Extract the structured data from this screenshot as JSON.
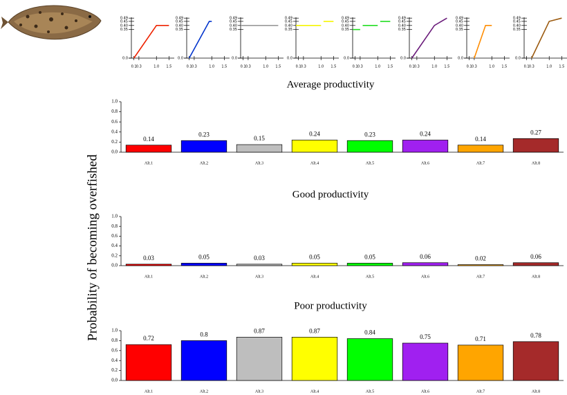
{
  "shared_ylabel": "Probability of becoming overfished",
  "chart_data": [
    {
      "type": "line",
      "color": "#ee2200",
      "x": [
        0.1,
        1.0,
        1.5
      ],
      "values": [
        0,
        0.4,
        0.4
      ],
      "xlim": [
        0,
        1.6
      ],
      "ylim": [
        0,
        0.5
      ],
      "xticks": [
        0.1,
        0.3,
        {
          "value": 1,
          "label": "1.0"
        },
        1.5
      ],
      "yticks": [
        {
          "value": 0,
          "label": "0.0"
        },
        0.35,
        {
          "value": 0.4,
          "label": "0.40"
        },
        0.45,
        0.49
      ]
    },
    {
      "type": "line",
      "color": "#0033cc",
      "x": [
        0.1,
        0.9,
        1.0
      ],
      "values": [
        0,
        0.45,
        0.45
      ],
      "xlim": [
        0,
        1.6
      ],
      "ylim": [
        0,
        0.5
      ],
      "xticks": [
        0.1,
        0.3,
        {
          "value": 1,
          "label": "1.0"
        },
        1.5
      ],
      "yticks": [
        {
          "value": 0,
          "label": "0.0"
        },
        0.35,
        {
          "value": 0.4,
          "label": "0.40"
        },
        0.45,
        0.49
      ]
    },
    {
      "type": "line",
      "color": "#999999",
      "x": [
        0,
        1.5
      ],
      "values": [
        0.4,
        0.4
      ],
      "xlim": [
        0,
        1.6
      ],
      "ylim": [
        0,
        0.5
      ],
      "xticks": [
        0.1,
        0.3,
        {
          "value": 1,
          "label": "1.0"
        },
        1.5
      ],
      "yticks": [
        {
          "value": 0,
          "label": "0.0"
        },
        0.35,
        {
          "value": 0.4,
          "label": "0.40"
        },
        0.45,
        0.49
      ]
    },
    {
      "type": "line",
      "color": "#f5f500",
      "x": [
        0,
        1.0,
        1.05,
        1.1,
        1.5
      ],
      "values": [
        0.4,
        0.4,
        null,
        0.45,
        0.45
      ],
      "xlim": [
        0,
        1.6
      ],
      "ylim": [
        0,
        0.5
      ],
      "xticks": [
        0.1,
        0.3,
        {
          "value": 1,
          "label": "1.0"
        },
        1.5
      ],
      "yticks": [
        {
          "value": 0,
          "label": "0.0"
        },
        0.35,
        {
          "value": 0.4,
          "label": "0.40"
        },
        0.45,
        0.49
      ]
    },
    {
      "type": "line",
      "color": "#22dd22",
      "x": [
        0,
        0.3,
        0.35,
        0.4,
        1.0,
        1.05,
        1.1,
        1.5
      ],
      "values": [
        0.35,
        0.35,
        null,
        0.4,
        0.4,
        null,
        0.45,
        0.45
      ],
      "xlim": [
        0,
        1.6
      ],
      "ylim": [
        0,
        0.5
      ],
      "xticks": [
        0.1,
        0.3,
        {
          "value": 1,
          "label": "1.0"
        },
        1.5
      ],
      "yticks": [
        {
          "value": 0,
          "label": "0.0"
        },
        0.35,
        {
          "value": 0.4,
          "label": "0.40"
        },
        0.45,
        0.49
      ]
    },
    {
      "type": "line",
      "color": "#6a1b7a",
      "x": [
        0.1,
        1.0,
        1.5
      ],
      "values": [
        0,
        0.4,
        0.49
      ],
      "xlim": [
        0,
        1.6
      ],
      "ylim": [
        0,
        0.5
      ],
      "xticks": [
        0.1,
        0.3,
        {
          "value": 1,
          "label": "1.0"
        },
        1.5
      ],
      "yticks": [
        {
          "value": 0,
          "label": "0.0"
        },
        0.35,
        {
          "value": 0.4,
          "label": "0.40"
        },
        0.45,
        0.49
      ]
    },
    {
      "type": "line",
      "color": "#ff8c00",
      "x": [
        0.3,
        0.75,
        1.0
      ],
      "values": [
        0,
        0.4,
        0.4
      ],
      "xlim": [
        0,
        1.6
      ],
      "ylim": [
        0,
        0.5
      ],
      "xticks": [
        0.1,
        0.3,
        {
          "value": 1,
          "label": "1.0"
        },
        1.5
      ],
      "yticks": [
        {
          "value": 0,
          "label": "0.0"
        },
        0.35,
        {
          "value": 0.4,
          "label": "0.40"
        },
        0.45,
        0.49
      ]
    },
    {
      "type": "line",
      "color": "#9b5a0f",
      "x": [
        0.3,
        1.0,
        1.5
      ],
      "values": [
        0,
        0.45,
        0.49
      ],
      "xlim": [
        0,
        1.6
      ],
      "ylim": [
        0,
        0.5
      ],
      "xticks": [
        0.1,
        0.3,
        {
          "value": 1,
          "label": "1.0"
        },
        1.5
      ],
      "yticks": [
        {
          "value": 0,
          "label": "0.0"
        },
        0.35,
        {
          "value": 0.4,
          "label": "0.40"
        },
        0.45,
        0.49
      ]
    },
    {
      "type": "bar",
      "title": "Average productivity",
      "categories": [
        "Alt.1",
        "Alt.2",
        "Alt.3",
        "Alt.4",
        "Alt.5",
        "Alt.6",
        "Alt.7",
        "Alt.8"
      ],
      "values": [
        0.14,
        0.23,
        0.15,
        0.24,
        0.23,
        0.24,
        0.14,
        0.27
      ],
      "colors": [
        "#ff0000",
        "#0000ff",
        "#bebebe",
        "#ffff00",
        "#00ff00",
        "#a020f0",
        "#ffa500",
        "#a52a2a"
      ],
      "ylim": [
        0,
        1
      ],
      "yticks": [
        {
          "value": 0,
          "label": "0.0"
        },
        0.2,
        0.4,
        0.6,
        0.8,
        {
          "value": 1,
          "label": "1.0"
        }
      ]
    },
    {
      "type": "bar",
      "title": "Good productivity",
      "categories": [
        "Alt.1",
        "Alt.2",
        "Alt.3",
        "Alt.4",
        "Alt.5",
        "Alt.6",
        "Alt.7",
        "Alt.8"
      ],
      "values": [
        0.03,
        0.05,
        0.03,
        0.05,
        0.05,
        0.06,
        0.02,
        0.06
      ],
      "colors": [
        "#ff0000",
        "#0000ff",
        "#bebebe",
        "#ffff00",
        "#00ff00",
        "#a020f0",
        "#ffa500",
        "#a52a2a"
      ],
      "ylim": [
        0,
        1
      ],
      "yticks": [
        {
          "value": 0,
          "label": "0.0"
        },
        0.2,
        0.4,
        0.6,
        0.8,
        {
          "value": 1,
          "label": "1.0"
        }
      ]
    },
    {
      "type": "bar",
      "title": "Poor productivity",
      "categories": [
        "Alt.1",
        "Alt.2",
        "Alt.3",
        "Alt.4",
        "Alt.5",
        "Alt.6",
        "Alt.7",
        "Alt.8"
      ],
      "values": [
        0.72,
        0.8,
        0.87,
        0.87,
        0.84,
        0.75,
        0.71,
        0.78
      ],
      "colors": [
        "#ff0000",
        "#0000ff",
        "#bebebe",
        "#ffff00",
        "#00ff00",
        "#a020f0",
        "#ffa500",
        "#a52a2a"
      ],
      "ylim": [
        0,
        1
      ],
      "yticks": [
        {
          "value": 0,
          "label": "0.0"
        },
        0.2,
        0.4,
        0.6,
        0.8,
        {
          "value": 1,
          "label": "1.0"
        }
      ]
    }
  ]
}
